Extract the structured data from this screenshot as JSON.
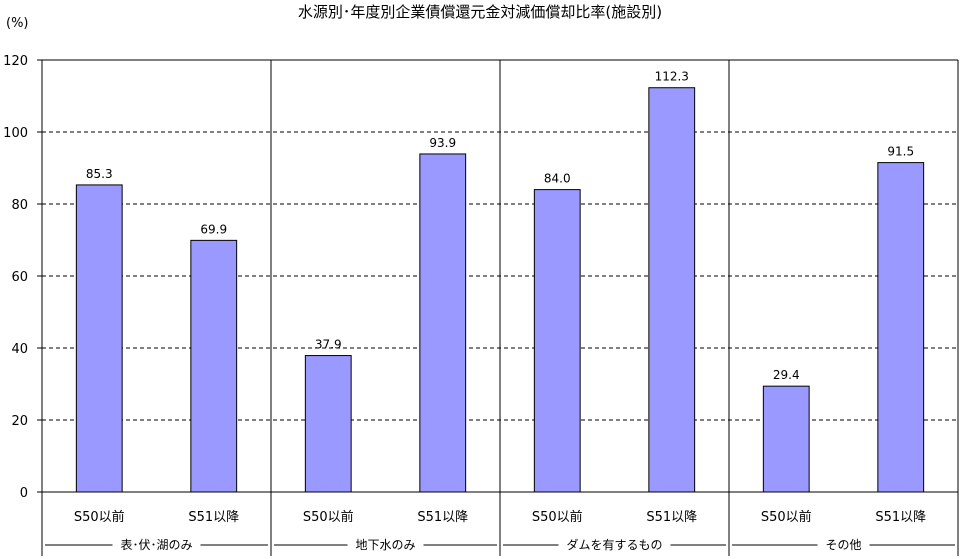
{
  "chart_data": {
    "type": "bar",
    "title": "水源別･年度別企業債償還元金対減価償却比率(施設別)",
    "y_unit": "(%)",
    "ylim": [
      0,
      120
    ],
    "yticks": [
      0,
      20,
      40,
      60,
      80,
      100,
      120
    ],
    "grid": "horizontal-dashed",
    "bar_color": "#9999ff",
    "groups": [
      {
        "name": "表･伏･湖のみ",
        "categories": [
          "S50以前",
          "S51以降"
        ],
        "values": [
          85.3,
          69.9
        ]
      },
      {
        "name": "地下水のみ",
        "categories": [
          "S50以前",
          "S51以降"
        ],
        "values": [
          37.9,
          93.9
        ]
      },
      {
        "name": "ダムを有するもの",
        "categories": [
          "S50以前",
          "S51以降"
        ],
        "values": [
          84.0,
          112.3
        ]
      },
      {
        "name": "その他",
        "categories": [
          "S50以前",
          "S51以降"
        ],
        "values": [
          29.4,
          91.5
        ]
      }
    ]
  }
}
